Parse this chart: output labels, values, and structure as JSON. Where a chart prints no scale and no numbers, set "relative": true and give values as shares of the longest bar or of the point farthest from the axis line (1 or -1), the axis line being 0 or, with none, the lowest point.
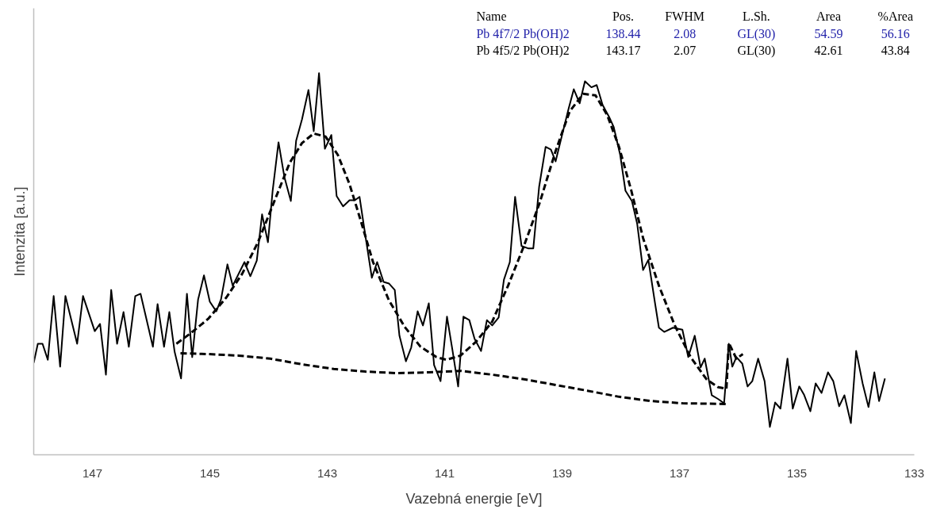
{
  "chart_data": {
    "type": "line",
    "relative": true,
    "xlabel": "Vazebná energie [eV]",
    "ylabel": "Intenzita [a.u.]",
    "xlim": [
      148,
      133
    ],
    "xticks": [
      147,
      145,
      143,
      141,
      139,
      137,
      135,
      133
    ],
    "grid": false,
    "annotations": [
      "Name",
      "Pos.",
      "FWHM",
      "L.Sh.",
      "Area",
      "%Area",
      "Pb 4f7/2 Pb(OH)2",
      "138.44",
      "2.08",
      "GL(30)",
      "54.59",
      "56.16",
      "Pb 4f5/2 Pb(OH)2",
      "143.17",
      "2.07",
      "GL(30)",
      "42.61",
      "43.84"
    ],
    "series": [
      {
        "color": "#000000",
        "line_style": "solid",
        "x": [
          148.0,
          147.93,
          147.85,
          147.76,
          147.66,
          147.55,
          147.46,
          147.26,
          147.16,
          146.96,
          146.87,
          146.77,
          146.68,
          146.58,
          146.47,
          146.38,
          146.27,
          146.18,
          145.97,
          145.89,
          145.78,
          145.69,
          145.6,
          145.49,
          145.39,
          145.3,
          145.2,
          145.1,
          145.0,
          144.89,
          144.81,
          144.7,
          144.61,
          144.41,
          144.31,
          144.2,
          144.11,
          144.01,
          143.93,
          143.83,
          143.73,
          143.62,
          143.53,
          143.43,
          143.32,
          143.23,
          143.14,
          143.04,
          142.93,
          142.84,
          142.73,
          142.62,
          142.53,
          142.45,
          142.35,
          142.24,
          142.15,
          142.04,
          141.95,
          141.85,
          141.77,
          141.66,
          141.57,
          141.46,
          141.37,
          141.27,
          141.18,
          141.07,
          140.96,
          140.87,
          140.77,
          140.68,
          140.58,
          140.49,
          140.38,
          140.28,
          140.19,
          140.08,
          139.99,
          139.89,
          139.8,
          139.69,
          139.58,
          139.49,
          139.39,
          139.28,
          139.19,
          139.11,
          139.0,
          138.89,
          138.8,
          138.7,
          138.61,
          138.5,
          138.41,
          138.31,
          138.2,
          138.12,
          138.01,
          137.92,
          137.81,
          137.72,
          137.62,
          137.53,
          137.42,
          137.35,
          137.26,
          137.11,
          136.95,
          136.85,
          136.74,
          136.64,
          136.57,
          136.45,
          136.34,
          136.24,
          136.16,
          136.1,
          136.03,
          135.93,
          135.84,
          135.76,
          135.66,
          135.55,
          135.46,
          135.37,
          135.28,
          135.16,
          135.07,
          134.96,
          134.88,
          134.77,
          134.68,
          134.58,
          134.47,
          134.38,
          134.28,
          134.19,
          134.08,
          133.99,
          133.88,
          133.78,
          133.68,
          133.6,
          133.5
        ],
        "values": [
          0.241,
          0.291,
          0.291,
          0.249,
          0.416,
          0.231,
          0.416,
          0.291,
          0.416,
          0.324,
          0.343,
          0.21,
          0.432,
          0.291,
          0.374,
          0.283,
          0.416,
          0.422,
          0.283,
          0.395,
          0.283,
          0.374,
          0.27,
          0.2,
          0.422,
          0.256,
          0.407,
          0.47,
          0.401,
          0.376,
          0.407,
          0.499,
          0.443,
          0.505,
          0.468,
          0.509,
          0.63,
          0.557,
          0.692,
          0.819,
          0.728,
          0.665,
          0.823,
          0.879,
          0.956,
          0.848,
          1.0,
          0.802,
          0.838,
          0.678,
          0.651,
          0.667,
          0.667,
          0.676,
          0.574,
          0.464,
          0.505,
          0.453,
          0.449,
          0.432,
          0.312,
          0.245,
          0.281,
          0.376,
          0.339,
          0.397,
          0.235,
          0.193,
          0.362,
          0.277,
          0.179,
          0.362,
          0.353,
          0.304,
          0.272,
          0.353,
          0.339,
          0.36,
          0.459,
          0.505,
          0.676,
          0.547,
          0.541,
          0.541,
          0.703,
          0.807,
          0.8,
          0.769,
          0.838,
          0.906,
          0.958,
          0.921,
          0.979,
          0.963,
          0.969,
          0.917,
          0.886,
          0.859,
          0.786,
          0.692,
          0.665,
          0.605,
          0.484,
          0.511,
          0.401,
          0.333,
          0.322,
          0.333,
          0.328,
          0.256,
          0.312,
          0.229,
          0.252,
          0.156,
          0.146,
          0.135,
          0.291,
          0.231,
          0.256,
          0.239,
          0.179,
          0.193,
          0.252,
          0.193,
          0.073,
          0.137,
          0.121,
          0.252,
          0.121,
          0.179,
          0.158,
          0.114,
          0.187,
          0.162,
          0.216,
          0.193,
          0.127,
          0.156,
          0.083,
          0.272,
          0.187,
          0.125,
          0.216,
          0.141,
          0.2
        ]
      },
      {
        "color": "#000000",
        "line_style": "dashed",
        "x": [
          145.57,
          145.33,
          145.03,
          144.72,
          144.45,
          144.18,
          143.91,
          143.64,
          143.43,
          143.23,
          143.03,
          142.82,
          142.62,
          142.42,
          142.22,
          141.95,
          141.68,
          141.41,
          141.14,
          140.97,
          140.73,
          140.46,
          140.19,
          139.92,
          139.65,
          139.38,
          139.11,
          138.87,
          138.64,
          138.43,
          138.23,
          138.03,
          137.82,
          137.62,
          137.35,
          137.08,
          136.81,
          136.54,
          136.34,
          136.2,
          136.16,
          136.03,
          135.92
        ],
        "values": [
          0.291,
          0.318,
          0.356,
          0.412,
          0.474,
          0.557,
          0.661,
          0.765,
          0.817,
          0.842,
          0.834,
          0.786,
          0.709,
          0.609,
          0.505,
          0.405,
          0.335,
          0.283,
          0.256,
          0.249,
          0.26,
          0.297,
          0.349,
          0.443,
          0.547,
          0.661,
          0.796,
          0.9,
          0.946,
          0.942,
          0.89,
          0.807,
          0.692,
          0.568,
          0.443,
          0.339,
          0.256,
          0.198,
          0.177,
          0.173,
          0.293,
          0.252,
          0.264
        ]
      },
      {
        "color": "#000000",
        "line_style": "dashed",
        "x": [
          145.5,
          145.05,
          144.51,
          143.97,
          143.43,
          142.89,
          142.35,
          141.81,
          141.27,
          140.73,
          140.19,
          139.65,
          139.11,
          138.57,
          138.03,
          137.49,
          136.95,
          136.16
        ],
        "values": [
          0.266,
          0.264,
          0.26,
          0.252,
          0.237,
          0.225,
          0.218,
          0.214,
          0.216,
          0.22,
          0.21,
          0.198,
          0.183,
          0.168,
          0.152,
          0.141,
          0.135,
          0.133
        ]
      }
    ]
  }
}
